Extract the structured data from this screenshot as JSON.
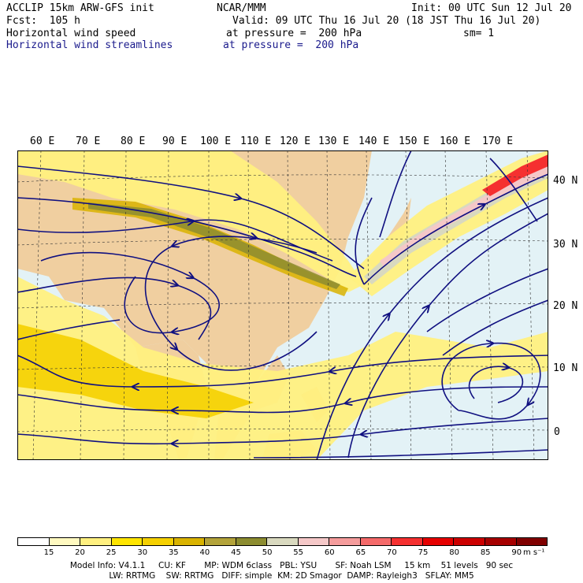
{
  "header": {
    "model": "ACCLIP 15km ARW-GFS init",
    "center": "NCAR/MMM",
    "init": "Init: 00 UTC Sun 12 Jul 20",
    "fcst": "Fcst:  105 h",
    "valid": "Valid: 09 UTC Thu 16 Jul 20 (18 JST Thu 16 Jul 20)",
    "field1": "Horizontal wind speed",
    "field1_level": "at pressure =  200 hPa",
    "field1_sm": "sm= 1",
    "field2": "Horizontal wind streamlines",
    "field2_level": "at pressure =  200 hPa"
  },
  "map": {
    "lon_labels": [
      "60 E",
      "70 E",
      "80 E",
      "90 E",
      "100 E",
      "110 E",
      "120 E",
      "130 E",
      "140 E",
      "150 E",
      "160 E",
      "170 E"
    ],
    "lat_labels": [
      "40 N",
      "30 N",
      "20 N",
      "10 N",
      "0"
    ]
  },
  "colorbar": {
    "labels": [
      "15",
      "20",
      "25",
      "30",
      "35",
      "40",
      "45",
      "50",
      "55",
      "60",
      "65",
      "70",
      "75",
      "80",
      "85",
      "90"
    ],
    "unit": "m s⁻¹",
    "colors": [
      "#ffffff",
      "#fff9c0",
      "#fff080",
      "#ffe500",
      "#f5d000",
      "#d9b300",
      "#b3a33a",
      "#8c8c30",
      "#d9d9bf",
      "#f5c8c8",
      "#f59c9c",
      "#f56a6a",
      "#f53030",
      "#e60000",
      "#cc0000",
      "#a60000",
      "#800000"
    ]
  },
  "footer": {
    "line1": "Model Info: V4.1.1     CU: KF       MP: WDM 6class   PBL: YSU       SF: Noah LSM     15 km    51 levels   90 sec",
    "line2": "LW: RRTMG    SW: RRTMG   DIFF: simple  KM: 2D Smagor  DAMP: Rayleigh3   SFLAY: MM5"
  }
}
